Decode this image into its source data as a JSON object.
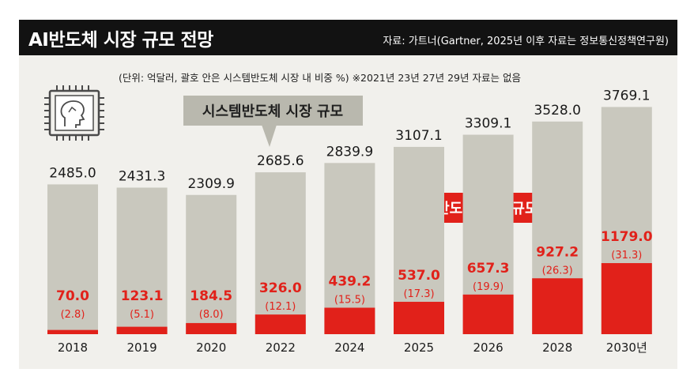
{
  "header": {
    "title": "AI반도체 시장 규모 전망",
    "source": "자료: 가트너(Gartner, 2025년 이후 자료는 정보통신정책연구원)"
  },
  "note": "(단위: 억달러, 괄호 안은 시스템반도체 시장 내 비중 %)   ※2021년 23년 27년 29년 자료는 없음",
  "colors": {
    "system": "#c9c8be",
    "ai": "#e1211a",
    "header_bg": "#121212",
    "panel_bg": "#f1f0ec"
  },
  "icons": [
    "ai-chip-icon"
  ],
  "chart_data": {
    "type": "bar",
    "title": "AI반도체 시장 규모 전망",
    "unit": "억달러",
    "categories": [
      "2018",
      "2019",
      "2020",
      "2022",
      "2024",
      "2025",
      "2026",
      "2028",
      "2030년"
    ],
    "series": [
      {
        "name": "시스템반도체 시장 규모",
        "values": [
          2485.0,
          2431.3,
          2309.9,
          2685.6,
          2839.9,
          3107.1,
          3309.1,
          3528.0,
          3769.1
        ],
        "labels": [
          "2485.0",
          "2431.3",
          "2309.9",
          "2685.6",
          "2839.9",
          "3107.1",
          "3309.1",
          "3528.0",
          "3769.1"
        ]
      },
      {
        "name": "AI반도체 시장 규모",
        "values": [
          70.0,
          123.1,
          184.5,
          326.0,
          439.2,
          537.0,
          657.3,
          927.2,
          1179.0
        ],
        "labels": [
          "70.0",
          "123.1",
          "184.5",
          "326.0",
          "439.2",
          "537.0",
          "657.3",
          "927.2",
          "1179.0"
        ]
      }
    ],
    "share_percent": [
      2.8,
      5.1,
      8.0,
      12.1,
      15.5,
      17.3,
      19.9,
      26.3,
      31.3
    ],
    "share_labels": [
      "(2.8)",
      "(5.1)",
      "(8.0)",
      "(12.1)",
      "(15.5)",
      "(17.3)",
      "(19.9)",
      "(26.3)",
      "(31.3)"
    ],
    "callouts": {
      "system": "시스템반도체 시장 규모",
      "ai": "AI반도체 시장 규모"
    },
    "ylim": [
      0,
      4000
    ]
  }
}
